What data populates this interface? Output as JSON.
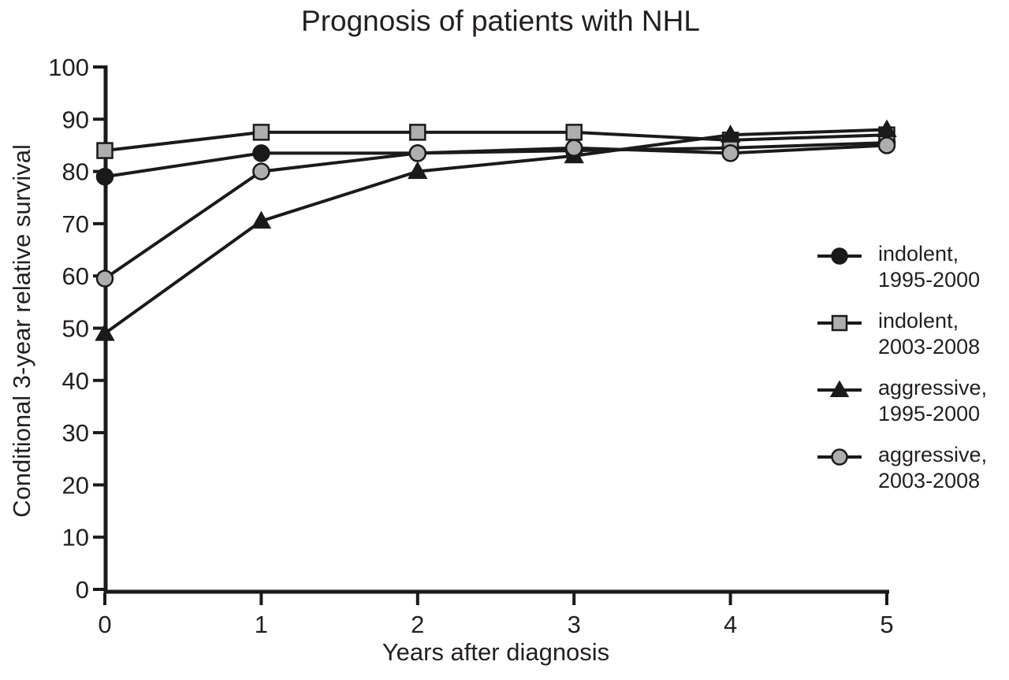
{
  "chart_data": {
    "type": "line",
    "title": "Prognosis of patients with NHL",
    "xlabel": "Years after diagnosis",
    "ylabel": "Conditional 3-year relative survival",
    "x": [
      0,
      1,
      2,
      3,
      4,
      5
    ],
    "xlim": [
      0,
      5
    ],
    "ylim": [
      0,
      100
    ],
    "xticks": [
      0,
      1,
      2,
      3,
      4,
      5
    ],
    "yticks": [
      0,
      10,
      20,
      30,
      40,
      50,
      60,
      70,
      80,
      90,
      100
    ],
    "grid": false,
    "legend_position": "right",
    "colors": {
      "line_black": "#1a1a1a",
      "marker_gray_fill": "#aeaeae",
      "text": "#231f20",
      "background": "#ffffff"
    },
    "series": [
      {
        "name": "indolent, 1995-2000",
        "legend_line1": "indolent,",
        "legend_line2": "1995-2000",
        "marker": "circle",
        "marker_fill": "#1a1a1a",
        "values": [
          79,
          83.5,
          83.5,
          84,
          84.5,
          85.5
        ]
      },
      {
        "name": "indolent, 2003-2008",
        "legend_line1": "indolent,",
        "legend_line2": "2003-2008",
        "marker": "square",
        "marker_fill": "#aeaeae",
        "values": [
          84,
          87.5,
          87.5,
          87.5,
          86,
          87
        ]
      },
      {
        "name": "aggressive, 1995-2000",
        "legend_line1": "aggressive,",
        "legend_line2": "1995-2000",
        "marker": "triangle",
        "marker_fill": "#1a1a1a",
        "values": [
          49,
          70.5,
          80,
          83,
          87,
          88
        ]
      },
      {
        "name": "aggressive, 2003-2008",
        "legend_line1": "aggressive,",
        "legend_line2": "2003-2008",
        "marker": "circle",
        "marker_fill": "#aeaeae",
        "values": [
          59.5,
          80,
          83.5,
          84.5,
          83.5,
          85
        ]
      }
    ]
  }
}
